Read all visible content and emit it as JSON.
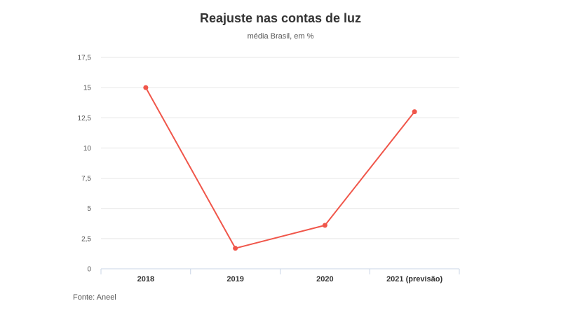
{
  "chart_data": {
    "type": "line",
    "title": "Reajuste nas contas de luz",
    "subtitle": "média Brasil, em %",
    "categories": [
      "2018",
      "2019",
      "2020",
      "2021 (previsão)"
    ],
    "series": [
      {
        "values": [
          15.0,
          1.7,
          3.6,
          13.0
        ]
      }
    ],
    "y_ticks": [
      "0",
      "2,5",
      "5",
      "7,5",
      "10",
      "12,5",
      "15",
      "17,5"
    ],
    "y_tick_values": [
      0,
      2.5,
      5,
      7.5,
      10,
      12.5,
      15,
      17.5
    ],
    "ylim": [
      0,
      17.5
    ],
    "grid": true,
    "line_color": "#f0564a",
    "gridline_color": "#e6e6e6",
    "axis_color": "#c8d4e6",
    "source": "Fonte: Aneel"
  }
}
